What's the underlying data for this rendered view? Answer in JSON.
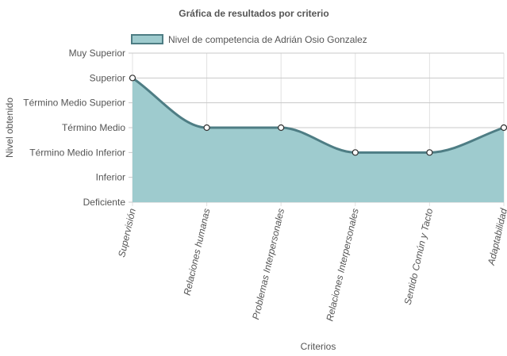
{
  "chart_data": {
    "type": "area",
    "title": "Gráfica de resultados por criterio",
    "xlabel": "Criterios",
    "ylabel": "Nivel obtenido",
    "y_levels": [
      "Deficiente",
      "Inferior",
      "Término Medio Inferior",
      "Término Medio",
      "Término Medio Superior",
      "Superior",
      "Muy Superior"
    ],
    "ylim": [
      0,
      6
    ],
    "categories": [
      "Supervisión",
      "Relaciones humanas",
      "Problemas Interpersonales",
      "Relaciones Interpersonales",
      "Sentido Común y Tacto",
      "Adaptabilidad"
    ],
    "series": [
      {
        "name": "Nivel de competencia de Adrián Osio Gonzalez",
        "values": [
          5,
          3,
          3,
          2,
          2,
          3
        ]
      }
    ],
    "legend_position": "top-left",
    "grid": true,
    "colors": {
      "fill": "#9ecbce",
      "line": "#4e7d84",
      "point_fill": "#ffffff",
      "point_stroke": "#333333"
    }
  }
}
